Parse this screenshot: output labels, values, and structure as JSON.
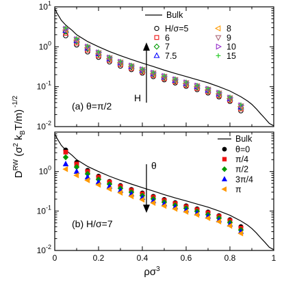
{
  "chart_data": [
    {
      "type": "scatter",
      "panel_label": "(a) θ=π/2",
      "annotation": "H",
      "yscale": "log",
      "xlim": [
        0,
        1
      ],
      "ylim": [
        0.01,
        10
      ],
      "x_ticks": [
        "0",
        "0.2",
        "0.4",
        "0.6",
        "0.8",
        "1"
      ],
      "y_ticks": [
        {
          "base": "10",
          "exp": "-2"
        },
        {
          "base": "10",
          "exp": "-1"
        },
        {
          "base": "10",
          "exp": "0"
        },
        {
          "base": "10",
          "exp": "1"
        }
      ],
      "legend_position": "top-right",
      "bulk": {
        "name": "Bulk",
        "x": [
          0.0,
          0.01,
          0.03,
          0.05,
          0.08,
          0.1,
          0.15,
          0.2,
          0.25,
          0.3,
          0.35,
          0.4,
          0.45,
          0.5,
          0.55,
          0.6,
          0.65,
          0.7,
          0.75,
          0.8,
          0.85,
          0.88,
          0.9,
          0.92,
          0.94,
          0.96,
          0.98,
          1.0
        ],
        "y": [
          9.0,
          7.0,
          4.6,
          3.5,
          2.55,
          2.0,
          1.35,
          1.0,
          0.76,
          0.6,
          0.48,
          0.39,
          0.32,
          0.26,
          0.215,
          0.18,
          0.15,
          0.125,
          0.1,
          0.078,
          0.056,
          0.044,
          0.036,
          0.028,
          0.021,
          0.016,
          0.012,
          0.0105
        ]
      },
      "x": [
        0.05,
        0.1,
        0.15,
        0.2,
        0.25,
        0.3,
        0.35,
        0.4,
        0.45,
        0.5,
        0.55,
        0.6,
        0.65,
        0.7,
        0.75,
        0.8,
        0.85
      ],
      "series": [
        {
          "name": "H/σ=5",
          "marker": "circle-open",
          "color": "#000000",
          "values": [
            1.9,
            1.12,
            0.75,
            0.55,
            0.42,
            0.33,
            0.27,
            0.22,
            0.18,
            0.15,
            0.125,
            0.103,
            0.085,
            0.07,
            0.056,
            0.043,
            0.025
          ]
        },
        {
          "name": "6",
          "marker": "square-open",
          "color": "#ee1111",
          "values": [
            2.2,
            1.25,
            0.83,
            0.6,
            0.46,
            0.36,
            0.29,
            0.235,
            0.193,
            0.16,
            0.133,
            0.11,
            0.091,
            0.075,
            0.06,
            0.046,
            0.028
          ]
        },
        {
          "name": "7",
          "marker": "diamond-open",
          "color": "#009900",
          "values": [
            2.45,
            1.37,
            0.9,
            0.65,
            0.49,
            0.385,
            0.31,
            0.25,
            0.205,
            0.17,
            0.141,
            0.117,
            0.097,
            0.08,
            0.064,
            0.049,
            0.03
          ]
        },
        {
          "name": "7.5",
          "marker": "triangle-up-open",
          "color": "#0000ff",
          "values": [
            2.55,
            1.42,
            0.93,
            0.67,
            0.5,
            0.395,
            0.318,
            0.256,
            0.21,
            0.174,
            0.144,
            0.12,
            0.1,
            0.082,
            0.066,
            0.05,
            0.031
          ]
        },
        {
          "name": "8",
          "marker": "triangle-left-open",
          "color": "#ff9900",
          "values": [
            2.62,
            1.46,
            0.95,
            0.685,
            0.51,
            0.4,
            0.323,
            0.26,
            0.213,
            0.177,
            0.147,
            0.122,
            0.102,
            0.084,
            0.067,
            0.051,
            0.032
          ]
        },
        {
          "name": "9",
          "marker": "triangle-down-open",
          "color": "#aa6677",
          "values": [
            2.72,
            1.5,
            0.98,
            0.705,
            0.525,
            0.41,
            0.33,
            0.266,
            0.218,
            0.181,
            0.15,
            0.125,
            0.104,
            0.086,
            0.069,
            0.052,
            0.033
          ]
        },
        {
          "name": "10",
          "marker": "triangle-right-open",
          "color": "#9933cc",
          "values": [
            2.8,
            1.54,
            1.0,
            0.72,
            0.535,
            0.418,
            0.336,
            0.27,
            0.222,
            0.184,
            0.153,
            0.127,
            0.106,
            0.088,
            0.07,
            0.053,
            0.034
          ]
        },
        {
          "name": "15",
          "marker": "plus",
          "color": "#33cc33",
          "values": [
            2.95,
            1.6,
            1.04,
            0.745,
            0.55,
            0.43,
            0.345,
            0.277,
            0.227,
            0.188,
            0.156,
            0.13,
            0.108,
            0.09,
            0.072,
            0.055,
            0.035
          ]
        }
      ]
    },
    {
      "type": "scatter",
      "panel_label": "(b) H/σ=7",
      "annotation": "θ",
      "yscale": "log",
      "xlim": [
        0,
        1
      ],
      "ylim": [
        0.01,
        10
      ],
      "xlabel_base": "ρσ",
      "xlabel_sup": "3",
      "ylabel": "D^RW (σ^2 k_B T/m)^-1/2",
      "x_ticks": [
        "0",
        "0.2",
        "0.4",
        "0.6",
        "0.8",
        "1"
      ],
      "y_ticks": [
        {
          "base": "10",
          "exp": "-2"
        },
        {
          "base": "10",
          "exp": "-1"
        },
        {
          "base": "10",
          "exp": "0"
        }
      ],
      "legend_position": "top-right",
      "bulk": {
        "name": "Bulk",
        "x": [
          0.0,
          0.01,
          0.03,
          0.05,
          0.08,
          0.1,
          0.15,
          0.2,
          0.25,
          0.3,
          0.35,
          0.4,
          0.45,
          0.5,
          0.55,
          0.6,
          0.65,
          0.7,
          0.75,
          0.8,
          0.85,
          0.88,
          0.9,
          0.92,
          0.94,
          0.96,
          0.98,
          1.0
        ],
        "y": [
          9.0,
          7.0,
          4.6,
          3.5,
          2.55,
          2.0,
          1.35,
          1.0,
          0.76,
          0.6,
          0.48,
          0.39,
          0.32,
          0.26,
          0.215,
          0.18,
          0.15,
          0.125,
          0.1,
          0.078,
          0.056,
          0.044,
          0.036,
          0.028,
          0.021,
          0.016,
          0.012,
          0.0105
        ]
      },
      "x": [
        0.05,
        0.1,
        0.15,
        0.2,
        0.25,
        0.3,
        0.35,
        0.4,
        0.45,
        0.5,
        0.55,
        0.6,
        0.65,
        0.7,
        0.75,
        0.8,
        0.85
      ],
      "series": [
        {
          "name": "θ=0",
          "marker": "circle",
          "color": "#000000",
          "values": [
            3.5,
            1.7,
            1.07,
            0.76,
            0.56,
            0.44,
            0.35,
            0.285,
            0.235,
            0.195,
            0.162,
            0.135,
            0.113,
            0.094,
            0.076,
            0.06,
            0.04
          ]
        },
        {
          "name": "π/4",
          "marker": "square",
          "color": "#ee1111",
          "values": [
            3.1,
            1.55,
            1.0,
            0.72,
            0.54,
            0.42,
            0.335,
            0.272,
            0.224,
            0.186,
            0.155,
            0.129,
            0.108,
            0.09,
            0.073,
            0.057,
            0.037
          ]
        },
        {
          "name": "π/2",
          "marker": "diamond",
          "color": "#009900",
          "values": [
            2.3,
            1.3,
            0.87,
            0.63,
            0.48,
            0.375,
            0.3,
            0.245,
            0.202,
            0.168,
            0.14,
            0.117,
            0.098,
            0.081,
            0.066,
            0.051,
            0.033
          ]
        },
        {
          "name": "3π/4",
          "marker": "triangle-up",
          "color": "#0000ff",
          "values": [
            1.55,
            1.0,
            0.72,
            0.54,
            0.42,
            0.33,
            0.268,
            0.218,
            0.18,
            0.15,
            0.126,
            0.105,
            0.088,
            0.073,
            0.059,
            0.046,
            0.03
          ]
        },
        {
          "name": "π",
          "marker": "triangle-left",
          "color": "#ff9900",
          "values": [
            1.15,
            0.8,
            0.6,
            0.46,
            0.36,
            0.29,
            0.235,
            0.193,
            0.16,
            0.134,
            0.113,
            0.095,
            0.08,
            0.066,
            0.054,
            0.042,
            0.027
          ]
        }
      ]
    }
  ]
}
